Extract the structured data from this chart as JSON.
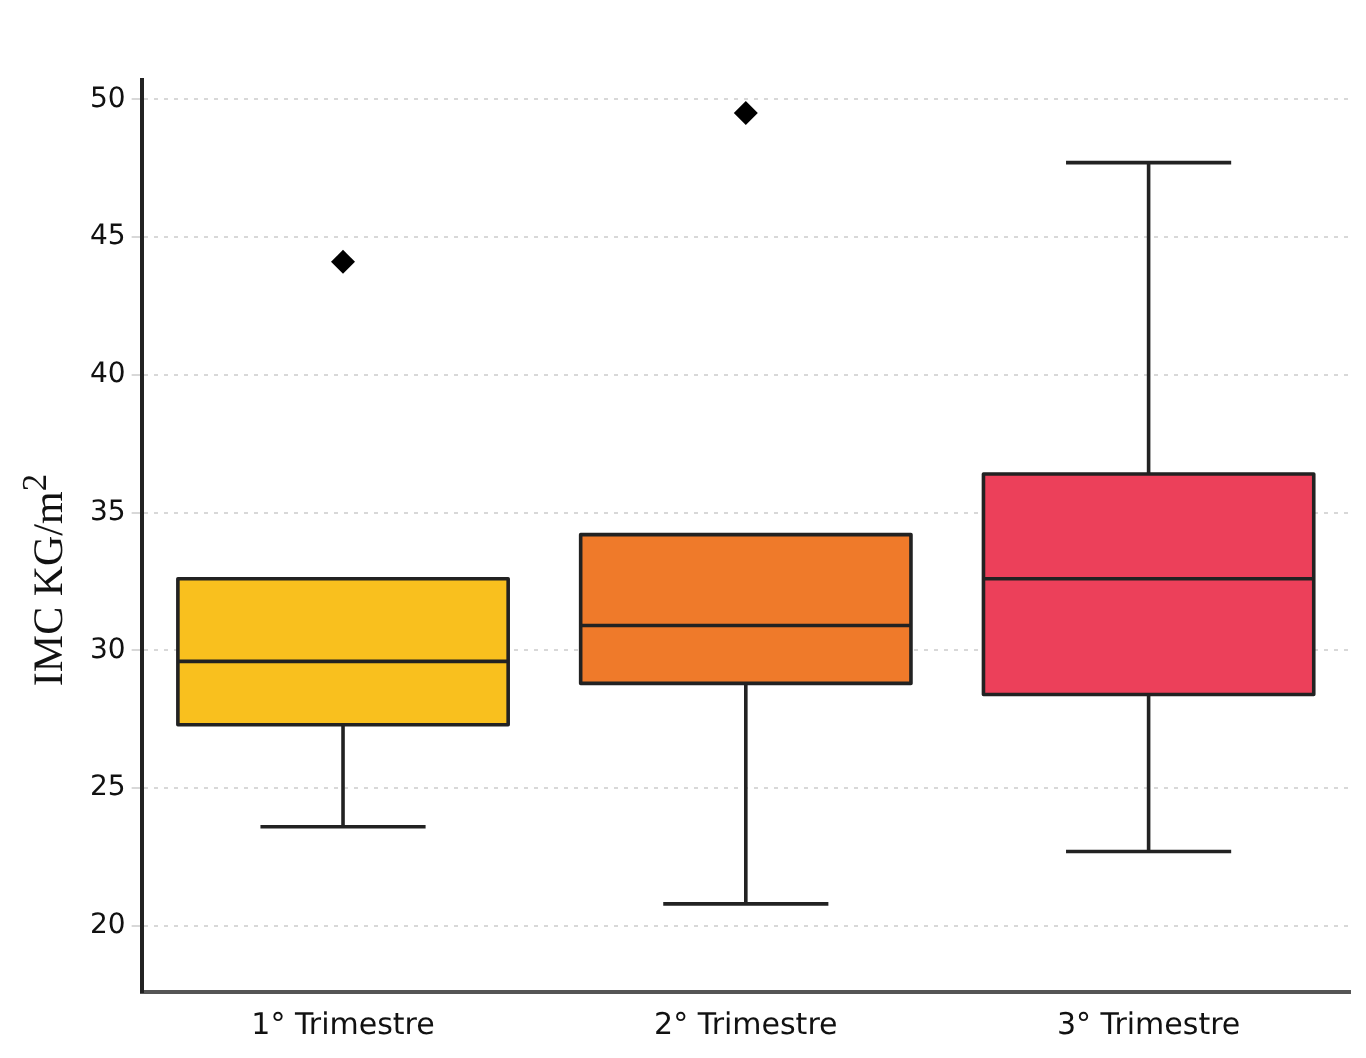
{
  "chart_data": {
    "type": "box",
    "ylabel": "IMC KG/m$^{2}$",
    "categories": [
      "1° Trimestre",
      "2° Trimestre",
      "3° Trimestre"
    ],
    "colors": [
      "#f9c01e",
      "#ef7a2a",
      "#ec405a"
    ],
    "boxes": [
      {
        "low": 23.6,
        "q1": 27.3,
        "median": 29.6,
        "q3": 32.6,
        "high": 32.6,
        "outliers": [
          44.1
        ]
      },
      {
        "low": 20.8,
        "q1": 28.8,
        "median": 30.9,
        "q3": 34.2,
        "high": 34.2,
        "outliers": [
          49.5
        ]
      },
      {
        "low": 22.7,
        "q1": 28.4,
        "median": 32.6,
        "q3": 36.4,
        "high": 47.7
      }
    ],
    "ylim": [
      17.6,
      50.7
    ],
    "yticks": [
      20,
      25,
      30,
      35,
      40,
      45,
      50
    ],
    "grid": "y",
    "marker": "diamond"
  }
}
